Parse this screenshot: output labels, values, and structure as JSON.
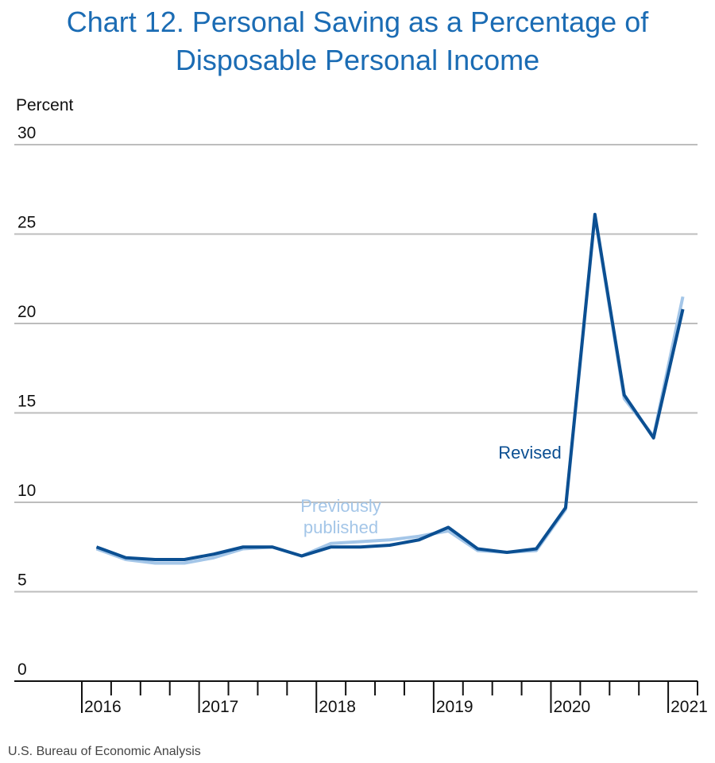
{
  "chart_data": {
    "type": "line",
    "title": "Chart 12. Personal Saving as a Percentage of Disposable Personal Income",
    "y_label": "Percent",
    "source": "U.S. Bureau of Economic Analysis",
    "categories": [
      "2016",
      null,
      null,
      null,
      "2017",
      null,
      null,
      null,
      "2018",
      null,
      null,
      null,
      "2019",
      null,
      null,
      null,
      "2020",
      null,
      null,
      null,
      "2021"
    ],
    "series": [
      {
        "name": "Previously published",
        "color": "#a4c6e8",
        "values": [
          7.4,
          6.8,
          6.6,
          6.6,
          6.9,
          7.4,
          7.5,
          7.0,
          7.7,
          7.8,
          7.9,
          8.1,
          8.4,
          7.3,
          7.2,
          7.3,
          9.6,
          26.0,
          15.8,
          13.7,
          21.5
        ]
      },
      {
        "name": "Revised",
        "color": "#0b4f92",
        "values": [
          7.5,
          6.9,
          6.8,
          6.8,
          7.1,
          7.5,
          7.5,
          7.0,
          7.5,
          7.5,
          7.6,
          7.9,
          8.6,
          7.4,
          7.2,
          7.4,
          9.7,
          26.1,
          16.0,
          13.6,
          20.8
        ]
      }
    ],
    "ylim": [
      0,
      30
    ],
    "yticks": [
      0,
      5,
      10,
      15,
      20,
      25,
      30
    ],
    "grid": true
  }
}
